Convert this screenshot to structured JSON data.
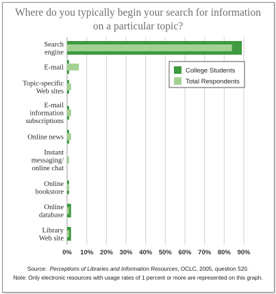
{
  "chart_data": {
    "type": "bar",
    "orientation": "horizontal",
    "title": "Where do you typically begin your search for information on a particular topic?",
    "title_lines": [
      "Where do you typically begin your search for information",
      "on a particular topic?"
    ],
    "categories": [
      [
        "Search",
        "engine"
      ],
      [
        "E-mail"
      ],
      [
        "Topic-specific",
        "Web sites"
      ],
      [
        "E-mail",
        "information",
        "subscriptions"
      ],
      [
        "Online news"
      ],
      [
        "Instant",
        "messaging/",
        "online chat"
      ],
      [
        "Online",
        "bookstore"
      ],
      [
        "Online",
        "database"
      ],
      [
        "Library",
        "Web site"
      ]
    ],
    "series": [
      {
        "name": "College Students",
        "color": "#3e9a40",
        "values": [
          89,
          1,
          1,
          1,
          1,
          0,
          1,
          2,
          2
        ]
      },
      {
        "name": "Total Respondents",
        "color": "#a3d192",
        "values": [
          84,
          6,
          2,
          2,
          2,
          1,
          1,
          1,
          1
        ]
      }
    ],
    "xlim": [
      0,
      90
    ],
    "xticks": [
      "0%",
      "10%",
      "20%",
      "30%",
      "40%",
      "50%",
      "60%",
      "70%",
      "80%",
      "90%"
    ],
    "grid": true,
    "legend": {
      "placement": "top-right"
    }
  },
  "source": {
    "prefix": "Source:",
    "title": "Perceptions of Libraries and Information Resources",
    "suffix": ", OCLC, 2005, question 520."
  },
  "note": "Note: Only electronic resources with usage rates of 1 percent or more are represented on this graph."
}
